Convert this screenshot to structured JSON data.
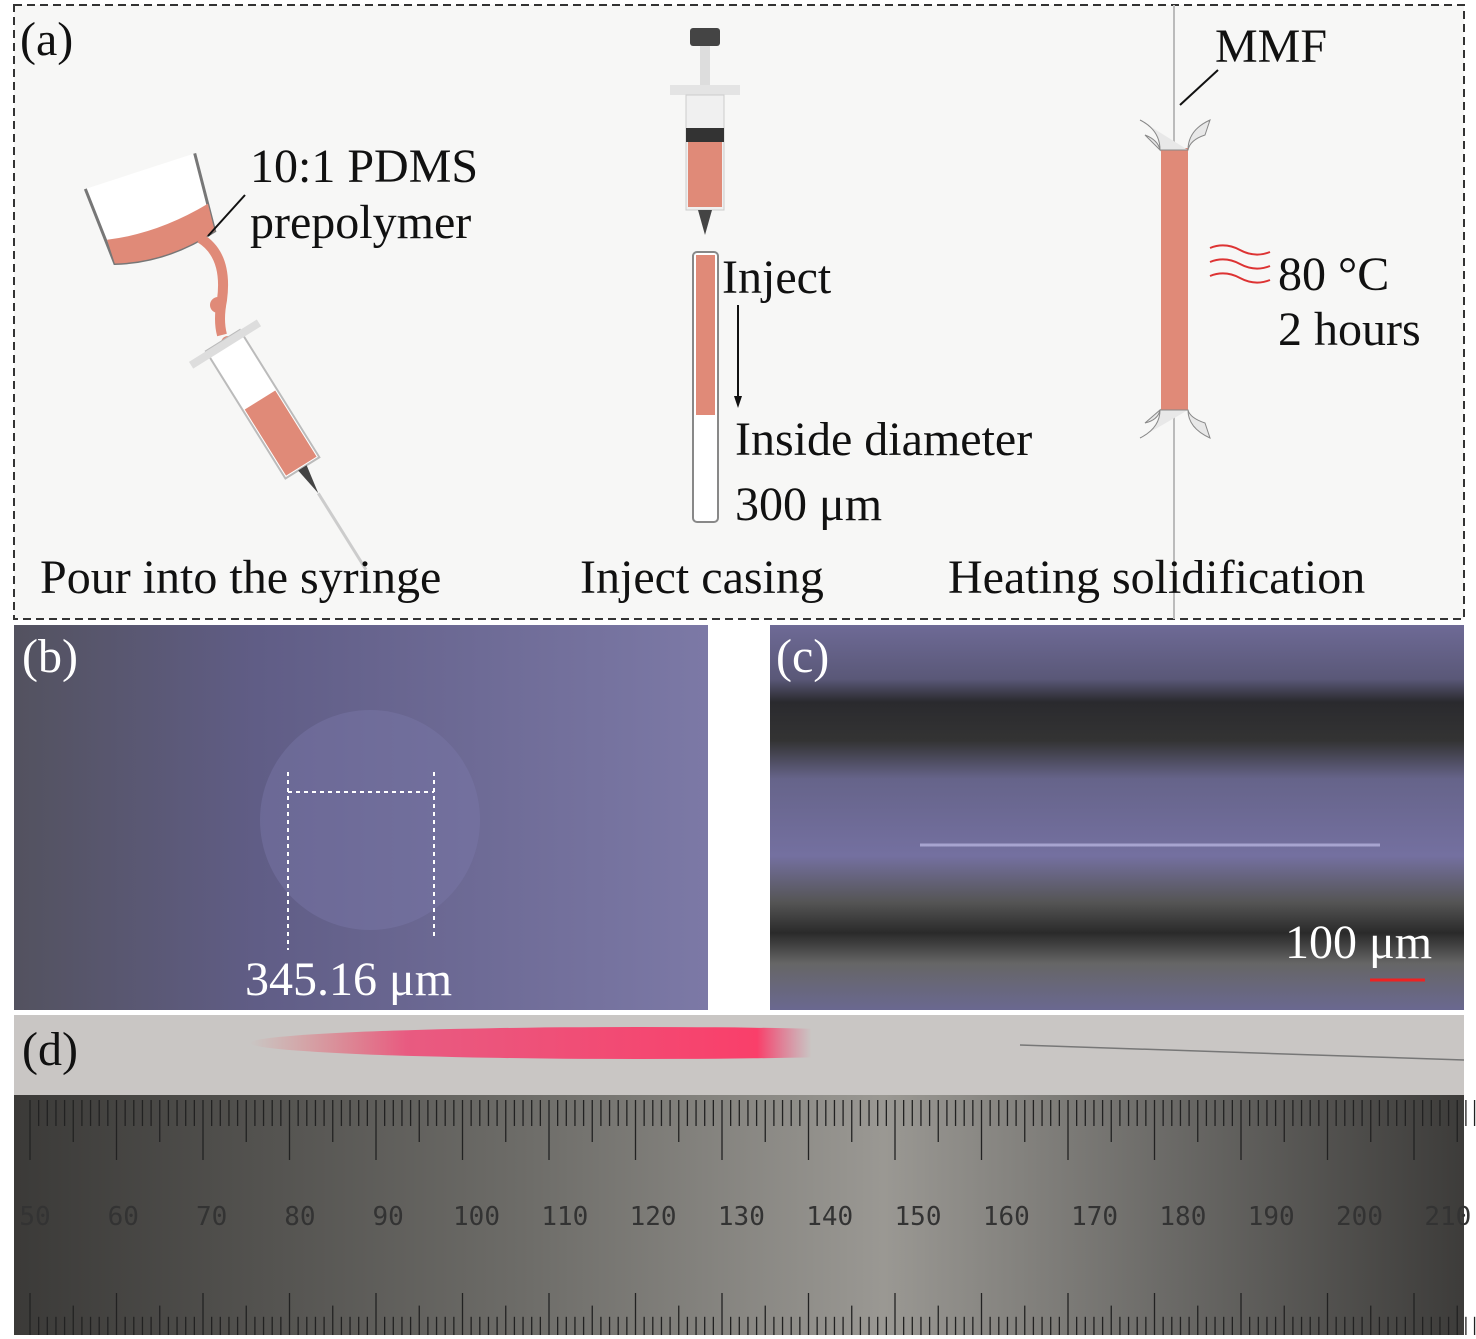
{
  "panel_a": {
    "label": "(a)",
    "pour": {
      "note_line1": "10:1 PDMS",
      "note_line2": "prepolymer",
      "caption": "Pour into the syringe"
    },
    "inject": {
      "note": "Inject",
      "diameter_line1": "Inside diameter",
      "diameter_line2": "300 μm",
      "caption": "Inject casing"
    },
    "heat": {
      "fiber": "MMF",
      "temperature": "80 °C",
      "duration": "2 hours",
      "caption": "Heating solidification"
    }
  },
  "panel_b": {
    "label": "(b)",
    "measurement": "345.16 μm"
  },
  "panel_c": {
    "label": "(c)",
    "scale_bar": "100 μm"
  },
  "panel_d": {
    "label": "(d)",
    "ruler": {
      "labels": [
        50,
        60,
        70,
        80,
        90,
        100,
        110,
        120,
        130,
        140,
        150,
        160,
        170,
        180,
        190,
        200,
        210
      ]
    }
  }
}
